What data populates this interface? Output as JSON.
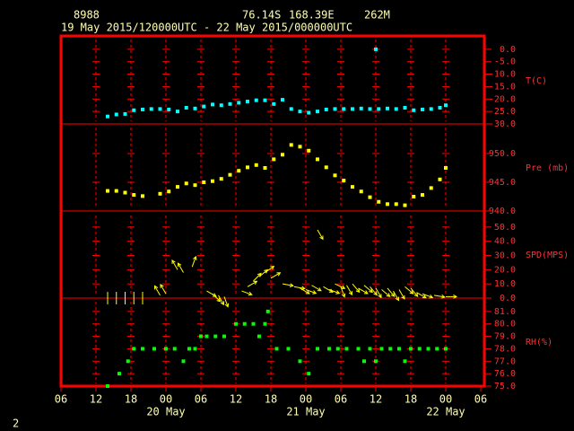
{
  "header": {
    "station": "8988",
    "lat": "76.14S",
    "lon": "168.39E",
    "elev": "262M",
    "period": "19 May 2015/120000UTC - 22 May 2015/000000UTC"
  },
  "footer": "2",
  "chart_data": [
    {
      "type": "scatter",
      "ylabel": "T(C)",
      "color": "#00ffff",
      "ylim": [
        -30,
        5
      ],
      "yticks": [
        {
          "value": 0,
          "label": "0.0"
        },
        {
          "value": -5,
          "label": "-5.0"
        },
        {
          "value": -10,
          "label": "-10.0"
        },
        {
          "value": -15,
          "label": "-15.0"
        },
        {
          "value": -20,
          "label": "-20.0"
        },
        {
          "value": -25,
          "label": "-25.0"
        },
        {
          "value": -30,
          "label": "-30.0"
        }
      ],
      "x": [
        14,
        15.5,
        17,
        18.5,
        20,
        21.5,
        23,
        24.5,
        26,
        27.5,
        29,
        30.5,
        32,
        33.5,
        35,
        36.5,
        38,
        39.5,
        41,
        42.5,
        44,
        45.5,
        47,
        48.5,
        50,
        51.5,
        53,
        54.5,
        56,
        57.5,
        59,
        60,
        60.5,
        62,
        63.5,
        65,
        66.5,
        68,
        69.5,
        71,
        72
      ],
      "values": [
        -27,
        -26.2,
        -26,
        -24.5,
        -24.2,
        -24,
        -24,
        -24.2,
        -25,
        -23.5,
        -23.8,
        -23,
        -22.2,
        -22.5,
        -22,
        -21.5,
        -21,
        -20.5,
        -20.5,
        -22,
        -20.3,
        -24,
        -25,
        -25.5,
        -25,
        -24.2,
        -24,
        -24,
        -24,
        -23.8,
        -24,
        0,
        -24,
        -23.8,
        -24,
        -23.5,
        -24.5,
        -24.2,
        -24,
        -23.5,
        -22.5
      ]
    },
    {
      "type": "scatter",
      "ylabel": "Pre (mb)",
      "color": "#ffff00",
      "ylim": [
        940,
        955
      ],
      "yticks": [
        {
          "value": 950,
          "label": "950.0"
        },
        {
          "value": 945,
          "label": "945.0"
        },
        {
          "value": 940,
          "label": "940.0"
        }
      ],
      "x": [
        14,
        15.5,
        17,
        18.5,
        20,
        23,
        24.5,
        26,
        27.5,
        29,
        30.5,
        32,
        33.5,
        35,
        36.5,
        38,
        39.5,
        41,
        42.5,
        44,
        45.5,
        47,
        48.5,
        50,
        51.5,
        53,
        54.5,
        56,
        57.5,
        59,
        60.5,
        62,
        63.5,
        65,
        66.5,
        68,
        69.5,
        71,
        72
      ],
      "values": [
        943.5,
        943.5,
        943.2,
        942.8,
        942.6,
        943,
        943.4,
        944.2,
        944.8,
        944.5,
        945,
        945.2,
        945.6,
        946.3,
        947,
        947.6,
        948,
        947.5,
        949,
        949.8,
        951.5,
        951.2,
        950.5,
        949,
        947.6,
        946.2,
        945.3,
        944.2,
        943.4,
        942.4,
        941.6,
        941.2,
        941.2,
        941,
        942.5,
        942.8,
        944,
        945.5,
        947.5
      ]
    },
    {
      "type": "vector",
      "ylabel": "SPD(MPS)",
      "color": "#ffff00",
      "ylim": [
        0,
        60
      ],
      "yticks": [
        {
          "value": 50,
          "label": "50.0"
        },
        {
          "value": 40,
          "label": "40.0"
        },
        {
          "value": 30,
          "label": "30.0"
        },
        {
          "value": 20,
          "label": "20.0"
        },
        {
          "value": 10,
          "label": "10.0"
        },
        {
          "value": 0,
          "label": "0.0"
        }
      ],
      "x": [
        14,
        15.5,
        17,
        18.5,
        20,
        23,
        24,
        26,
        27,
        28.5,
        31,
        32,
        33,
        34,
        37,
        38,
        39,
        40,
        41,
        42,
        44,
        46,
        47,
        48,
        49,
        50,
        51,
        52,
        53,
        54,
        55,
        56,
        57,
        58,
        59,
        60,
        61,
        62,
        63,
        64,
        65,
        66,
        67,
        68,
        70,
        72
      ],
      "values": [
        0,
        0,
        0,
        0,
        0,
        2,
        3,
        20,
        18,
        22,
        5,
        3,
        2,
        1,
        5,
        8,
        12,
        15,
        18,
        14,
        10,
        8,
        7,
        6,
        9,
        48,
        8,
        6,
        10,
        8,
        9,
        10,
        7,
        9,
        8,
        7,
        6,
        7,
        5,
        6,
        8,
        7,
        4,
        3,
        2,
        1
      ],
      "directions": [
        0,
        0,
        0,
        0,
        0,
        330,
        330,
        330,
        330,
        20,
        120,
        135,
        150,
        160,
        110,
        60,
        45,
        50,
        55,
        60,
        100,
        100,
        120,
        110,
        120,
        150,
        120,
        110,
        115,
        160,
        150,
        140,
        120,
        130,
        140,
        150,
        130,
        140,
        150,
        150,
        130,
        140,
        120,
        110,
        100,
        90
      ]
    },
    {
      "type": "scatter",
      "ylabel": "RH(%)",
      "color": "#00ff00",
      "ylim": [
        75,
        82
      ],
      "yticks": [
        {
          "value": 81,
          "label": "81.0"
        },
        {
          "value": 80,
          "label": "80.0"
        },
        {
          "value": 79,
          "label": "79.0"
        },
        {
          "value": 78,
          "label": "78.0"
        },
        {
          "value": 77,
          "label": "77.0"
        },
        {
          "value": 76,
          "label": "76.0"
        },
        {
          "value": 75,
          "label": "75.0"
        }
      ],
      "x": [
        14,
        16,
        17.5,
        18.5,
        20,
        22,
        24,
        25.5,
        27,
        28,
        29,
        30,
        31,
        32.5,
        34,
        36,
        37.5,
        39,
        40,
        41,
        41.5,
        43,
        45,
        47,
        48.5,
        50,
        52,
        53.5,
        55,
        57,
        58,
        59,
        60,
        61,
        62.5,
        64,
        65,
        66,
        67.5,
        69,
        70.5,
        72
      ],
      "values": [
        75,
        76,
        77,
        78,
        78,
        78,
        78,
        78,
        77,
        78,
        78,
        79,
        79,
        79,
        79,
        80,
        80,
        80,
        79,
        80,
        81,
        78,
        78,
        77,
        76,
        78,
        78,
        78,
        78,
        78,
        77,
        78,
        77,
        78,
        78,
        78,
        77,
        78,
        78,
        78,
        78,
        78
      ],
      "xlim": [
        6,
        78
      ],
      "xticks": [
        {
          "value": 6,
          "label": "06"
        },
        {
          "value": 12,
          "label": "12"
        },
        {
          "value": 18,
          "label": "18"
        },
        {
          "value": 24,
          "label": "00"
        },
        {
          "value": 30,
          "label": "06"
        },
        {
          "value": 36,
          "label": "12"
        },
        {
          "value": 42,
          "label": "18"
        },
        {
          "value": 48,
          "label": "00"
        },
        {
          "value": 54,
          "label": "06"
        },
        {
          "value": 60,
          "label": "12"
        },
        {
          "value": 66,
          "label": "18"
        },
        {
          "value": 72,
          "label": "00"
        },
        {
          "value": 78,
          "label": "06"
        }
      ],
      "date_labels": [
        {
          "value": 24,
          "label": "20 May"
        },
        {
          "value": 48,
          "label": "21 May"
        },
        {
          "value": 72,
          "label": "22 May"
        }
      ]
    }
  ]
}
